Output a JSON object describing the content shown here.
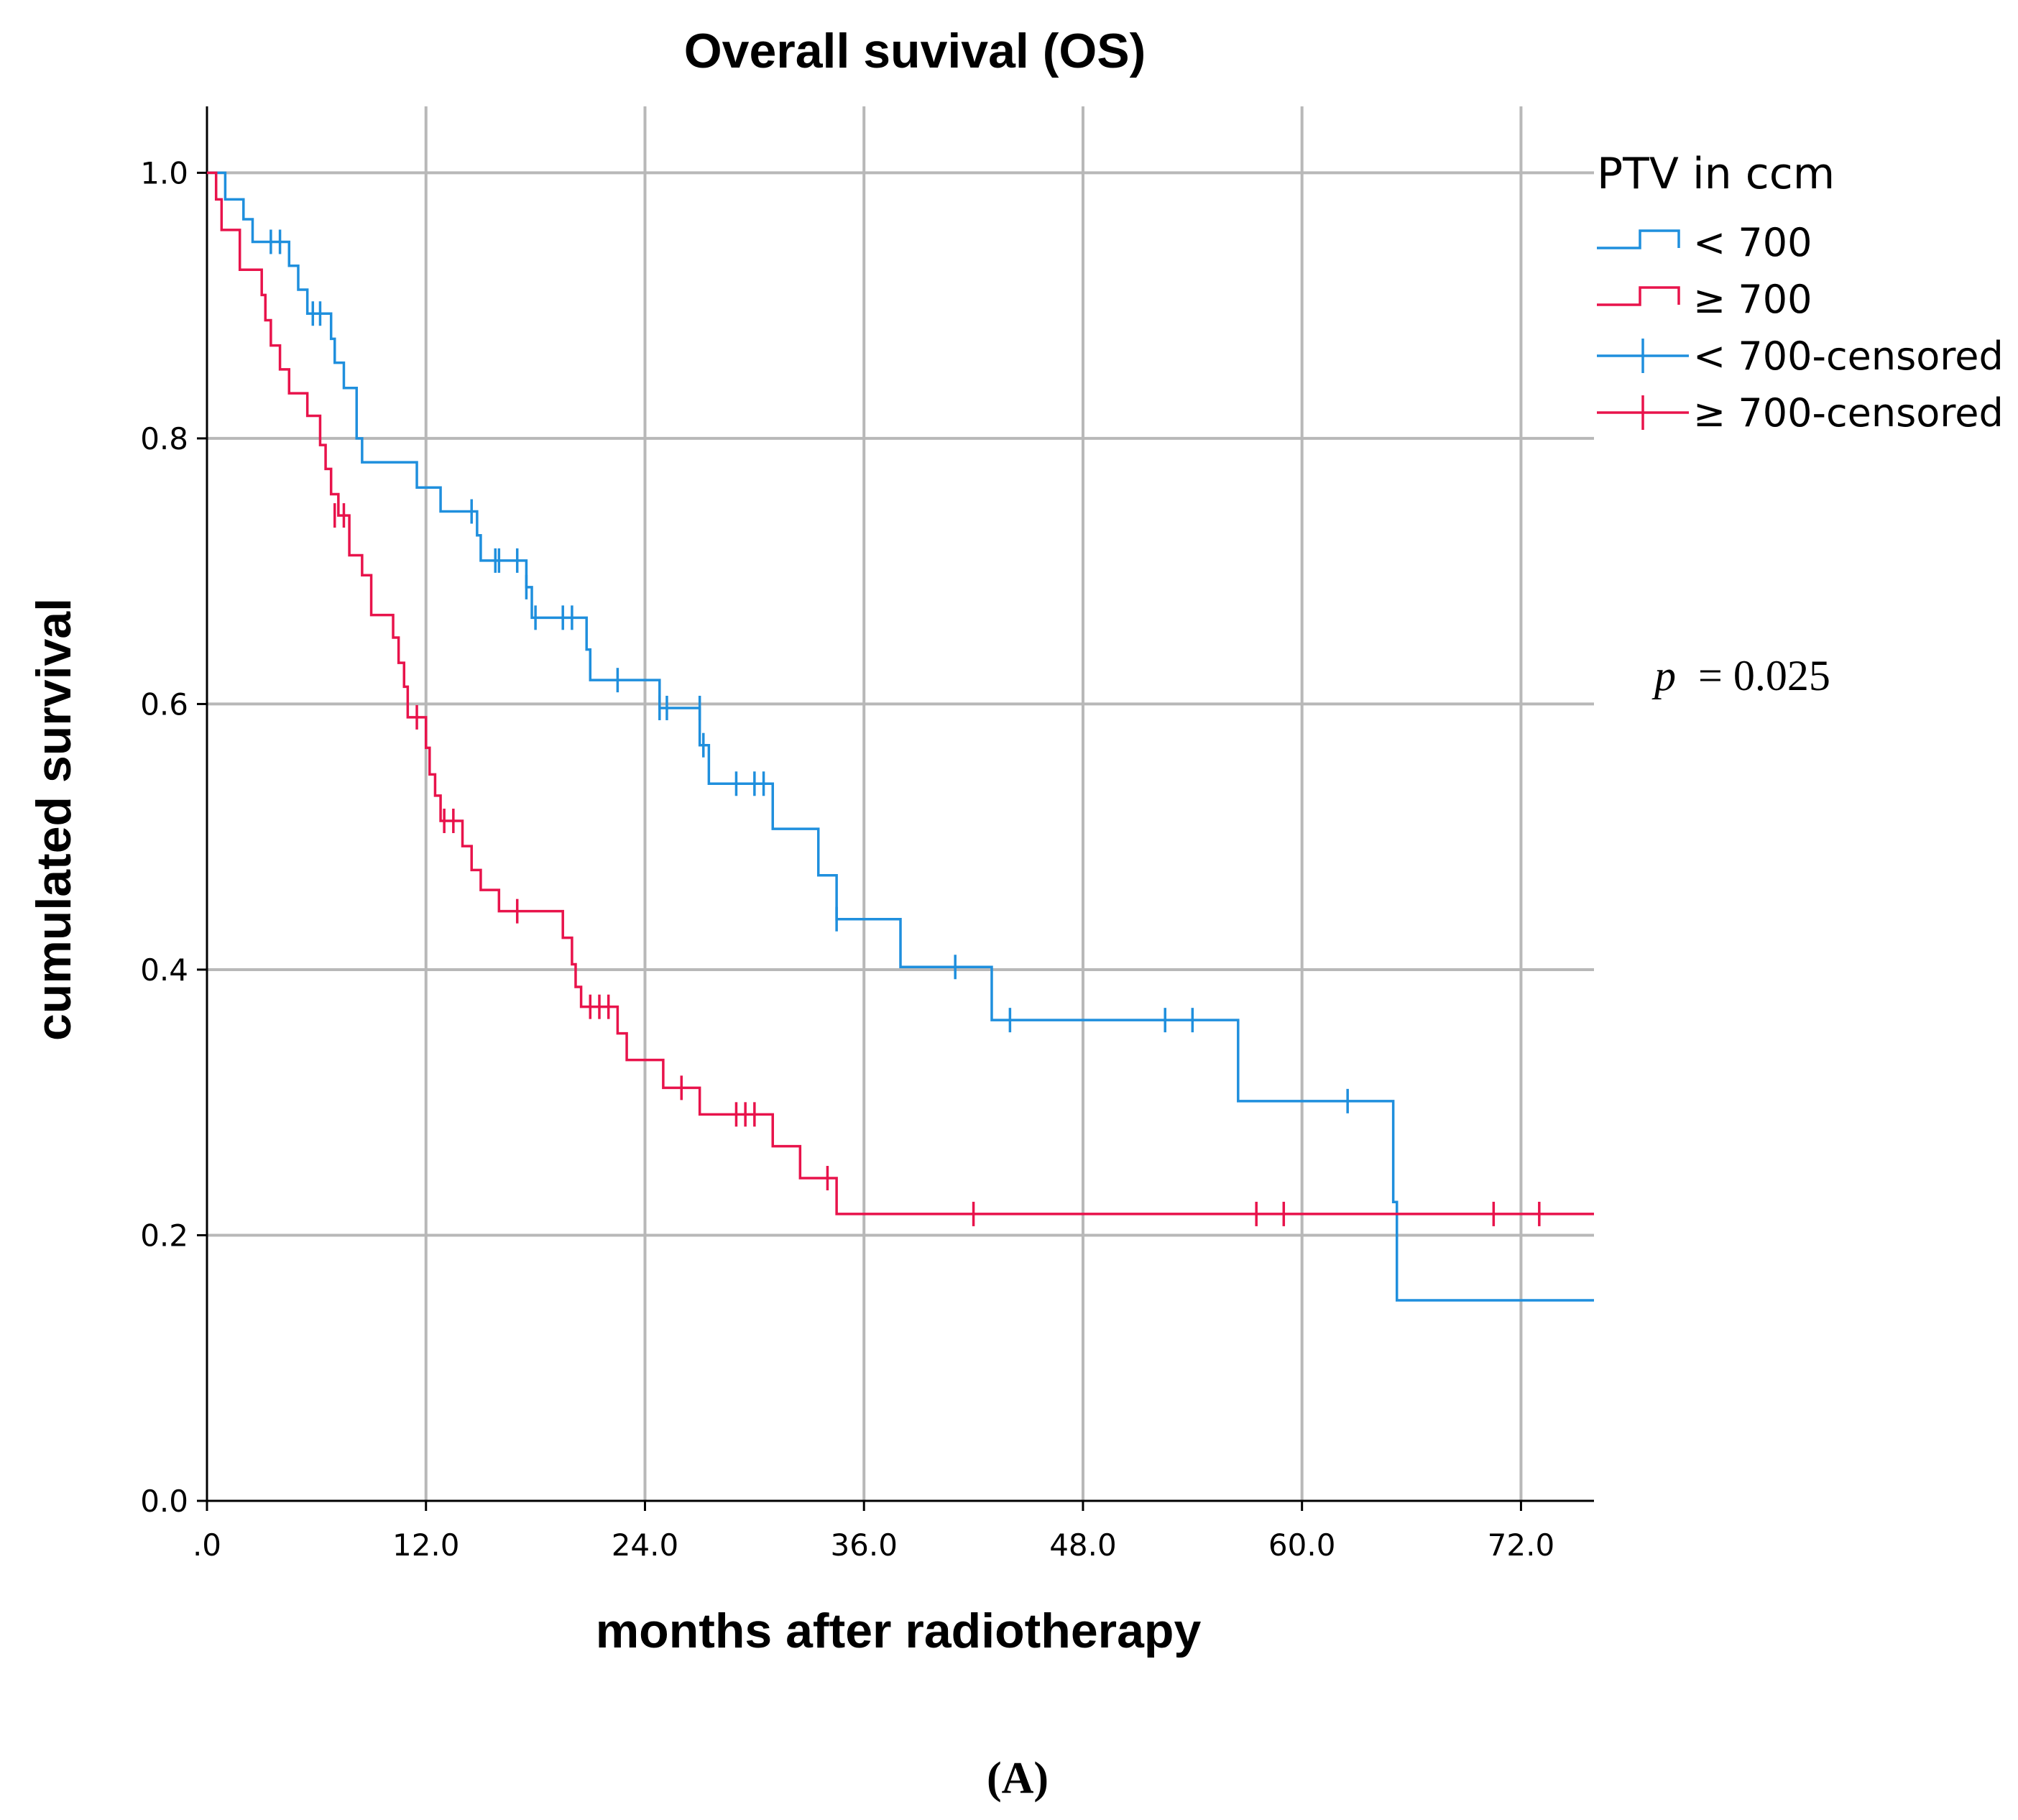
{
  "chart_data": {
    "type": "line",
    "title": "Overall suvival (OS)",
    "xlabel": "months after radiotherapy",
    "ylabel": "cumulated survival",
    "xlim": [
      0,
      76
    ],
    "ylim": [
      0,
      1.05
    ],
    "x_ticks": [
      0,
      12,
      24,
      36,
      48,
      60,
      72
    ],
    "x_tick_labels": [
      ".0",
      "12.0",
      "24.0",
      "36.0",
      "48.0",
      "60.0",
      "72.0"
    ],
    "y_ticks": [
      0,
      0.2,
      0.4,
      0.6,
      0.8,
      1.0
    ],
    "y_tick_labels": [
      "0.0",
      "0.2",
      "0.4",
      "0.6",
      "0.8",
      "1.0"
    ],
    "grid": true,
    "legend": {
      "title": "PTV in ccm",
      "position": "right",
      "entries": [
        {
          "label": "< 700",
          "kind": "step",
          "color": "#1f8fdd"
        },
        {
          "label": "≥ 700",
          "kind": "step",
          "color": "#e8134b"
        },
        {
          "label": "< 700-censored",
          "kind": "censor",
          "color": "#1f8fdd"
        },
        {
          "label": "≥ 700-censored",
          "kind": "censor",
          "color": "#e8134b"
        }
      ]
    },
    "annotation": {
      "p_label": "p",
      "p_value": "= 0.025"
    },
    "panel_label": "(A)",
    "series": [
      {
        "name": "< 700",
        "color": "#1f8fdd",
        "steps": [
          [
            0,
            1.0
          ],
          [
            1.0,
            0.98
          ],
          [
            2.0,
            0.965
          ],
          [
            2.5,
            0.948
          ],
          [
            4.5,
            0.93
          ],
          [
            5.0,
            0.912
          ],
          [
            5.5,
            0.894
          ],
          [
            6.8,
            0.875
          ],
          [
            7.0,
            0.857
          ],
          [
            7.5,
            0.838
          ],
          [
            8.2,
            0.8
          ],
          [
            8.5,
            0.782
          ],
          [
            11.5,
            0.763
          ],
          [
            12.8,
            0.745
          ],
          [
            14.8,
            0.727
          ],
          [
            15.0,
            0.708
          ],
          [
            17.5,
            0.688
          ],
          [
            17.8,
            0.665
          ],
          [
            20.8,
            0.641
          ],
          [
            21.0,
            0.618
          ],
          [
            24.8,
            0.597
          ],
          [
            27.0,
            0.569
          ],
          [
            27.5,
            0.54
          ],
          [
            31.0,
            0.506
          ],
          [
            33.5,
            0.471
          ],
          [
            34.5,
            0.438
          ],
          [
            38.0,
            0.402
          ],
          [
            43.0,
            0.362
          ],
          [
            56.5,
            0.301
          ],
          [
            65.0,
            0.225
          ],
          [
            65.2,
            0.151
          ],
          [
            76,
            0.151
          ]
        ],
        "censored": [
          [
            3.5,
            0.948
          ],
          [
            4.0,
            0.948
          ],
          [
            5.8,
            0.894
          ],
          [
            6.2,
            0.894
          ],
          [
            14.5,
            0.745
          ],
          [
            15.8,
            0.708
          ],
          [
            16.0,
            0.708
          ],
          [
            17.0,
            0.708
          ],
          [
            17.5,
            0.688
          ],
          [
            18.0,
            0.665
          ],
          [
            19.5,
            0.665
          ],
          [
            20.0,
            0.665
          ],
          [
            22.5,
            0.618
          ],
          [
            24.8,
            0.597
          ],
          [
            25.2,
            0.597
          ],
          [
            27.0,
            0.597
          ],
          [
            27.2,
            0.569
          ],
          [
            29.0,
            0.54
          ],
          [
            30.0,
            0.54
          ],
          [
            30.5,
            0.54
          ],
          [
            34.5,
            0.438
          ],
          [
            41.0,
            0.402
          ],
          [
            44.0,
            0.362
          ],
          [
            52.5,
            0.362
          ],
          [
            54.0,
            0.362
          ],
          [
            62.5,
            0.301
          ]
        ]
      },
      {
        "name": "≥ 700",
        "color": "#e8134b",
        "steps": [
          [
            0,
            1.0
          ],
          [
            0.5,
            0.98
          ],
          [
            0.8,
            0.957
          ],
          [
            1.8,
            0.927
          ],
          [
            3.0,
            0.908
          ],
          [
            3.2,
            0.889
          ],
          [
            3.5,
            0.87
          ],
          [
            4.0,
            0.852
          ],
          [
            4.5,
            0.834
          ],
          [
            5.5,
            0.817
          ],
          [
            6.2,
            0.795
          ],
          [
            6.5,
            0.777
          ],
          [
            6.8,
            0.758
          ],
          [
            7.2,
            0.742
          ],
          [
            7.8,
            0.712
          ],
          [
            8.5,
            0.697
          ],
          [
            9.0,
            0.667
          ],
          [
            10.2,
            0.65
          ],
          [
            10.5,
            0.631
          ],
          [
            10.8,
            0.613
          ],
          [
            11.0,
            0.59
          ],
          [
            12.0,
            0.567
          ],
          [
            12.2,
            0.547
          ],
          [
            12.5,
            0.531
          ],
          [
            12.8,
            0.512
          ],
          [
            14.0,
            0.493
          ],
          [
            14.5,
            0.475
          ],
          [
            15.0,
            0.46
          ],
          [
            16.0,
            0.444
          ],
          [
            19.5,
            0.424
          ],
          [
            20.0,
            0.404
          ],
          [
            20.2,
            0.387
          ],
          [
            20.5,
            0.372
          ],
          [
            22.5,
            0.352
          ],
          [
            23.0,
            0.332
          ],
          [
            25.0,
            0.311
          ],
          [
            27.0,
            0.291
          ],
          [
            31.0,
            0.267
          ],
          [
            32.5,
            0.243
          ],
          [
            34.5,
            0.216
          ],
          [
            76,
            0.216
          ]
        ],
        "censored": [
          [
            7.0,
            0.742
          ],
          [
            7.5,
            0.742
          ],
          [
            11.5,
            0.59
          ],
          [
            13.0,
            0.512
          ],
          [
            13.5,
            0.512
          ],
          [
            17.0,
            0.444
          ],
          [
            21.0,
            0.372
          ],
          [
            21.5,
            0.372
          ],
          [
            22.0,
            0.372
          ],
          [
            26.0,
            0.311
          ],
          [
            29.0,
            0.291
          ],
          [
            29.5,
            0.291
          ],
          [
            30.0,
            0.291
          ],
          [
            34.0,
            0.243
          ],
          [
            42.0,
            0.216
          ],
          [
            57.5,
            0.216
          ],
          [
            59.0,
            0.216
          ],
          [
            70.5,
            0.216
          ],
          [
            73.0,
            0.216
          ]
        ]
      }
    ]
  }
}
